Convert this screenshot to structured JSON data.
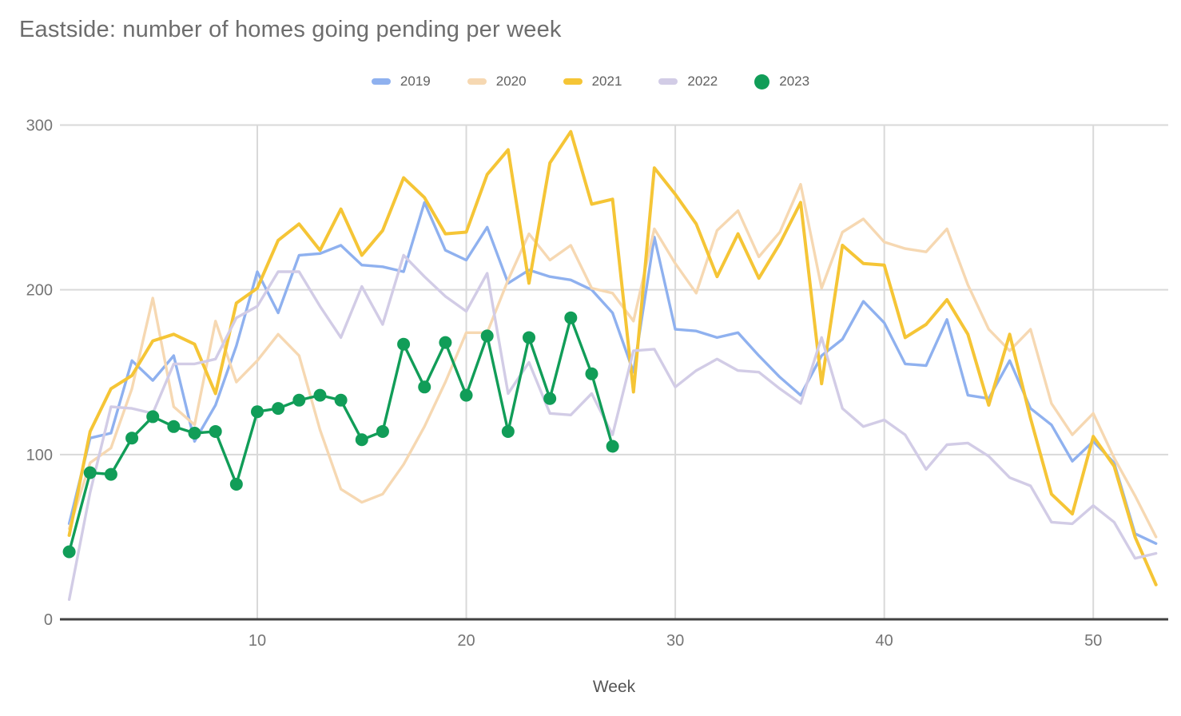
{
  "page": {
    "background": "#ffffff"
  },
  "chart_data": {
    "type": "line",
    "title": "Eastside: number of homes going pending per week",
    "xlabel": "Week",
    "ylabel": "",
    "x_start_week": 1,
    "x_ticks": [
      10,
      20,
      30,
      40,
      50
    ],
    "y_ticks": [
      0,
      100,
      200,
      300
    ],
    "xlim": [
      1,
      53
    ],
    "ylim": [
      0,
      300
    ],
    "grid": true,
    "legend_position": "top-center",
    "colors": {
      "grid": "#d9d9d9",
      "axis_line": "#424242",
      "tick_label": "#757575",
      "axis_title": "#555555",
      "title_text": "#6d6d6d",
      "legend_text": "#616161"
    },
    "series": [
      {
        "name": "2019",
        "color": "#8fb1ef",
        "marker": "none",
        "values": [
          58,
          110,
          113,
          157,
          145,
          160,
          108,
          130,
          166,
          211,
          186,
          221,
          222,
          227,
          215,
          214,
          211,
          253,
          224,
          218,
          238,
          204,
          212,
          208,
          206,
          200,
          186,
          150,
          232,
          176,
          175,
          171,
          174,
          160,
          147,
          136,
          160,
          170,
          193,
          180,
          155,
          154,
          182,
          136,
          134,
          157,
          128,
          118,
          96,
          108,
          95,
          52,
          46
        ]
      },
      {
        "name": "2020",
        "color": "#f6d8b2",
        "marker": "none",
        "values": [
          55,
          95,
          104,
          140,
          195,
          129,
          118,
          181,
          144,
          157,
          173,
          160,
          115,
          79,
          71,
          76,
          94,
          117,
          144,
          174,
          174,
          206,
          234,
          218,
          227,
          201,
          198,
          181,
          237,
          216,
          198,
          236,
          248,
          220,
          235,
          264,
          201,
          235,
          243,
          229,
          225,
          223,
          237,
          203,
          176,
          163,
          176,
          131,
          112,
          125,
          98,
          75,
          50
        ]
      },
      {
        "name": "2021",
        "color": "#f5c536",
        "marker": "none",
        "values": [
          51,
          114,
          140,
          148,
          169,
          173,
          167,
          137,
          192,
          201,
          230,
          240,
          224,
          249,
          221,
          236,
          268,
          256,
          234,
          235,
          270,
          285,
          204,
          277,
          296,
          252,
          255,
          138,
          274,
          258,
          240,
          208,
          234,
          207,
          228,
          253,
          143,
          227,
          216,
          215,
          171,
          179,
          194,
          173,
          130,
          173,
          122,
          76,
          64,
          111,
          93,
          50,
          21
        ]
      },
      {
        "name": "2022",
        "color": "#d2cce6",
        "marker": "none",
        "values": [
          12,
          77,
          129,
          128,
          125,
          155,
          155,
          158,
          183,
          190,
          211,
          211,
          190,
          171,
          202,
          179,
          221,
          208,
          196,
          187,
          210,
          137,
          156,
          125,
          124,
          137,
          112,
          163,
          164,
          141,
          151,
          158,
          151,
          150,
          140,
          131,
          171,
          128,
          117,
          121,
          112,
          91,
          106,
          107,
          99,
          86,
          81,
          59,
          58,
          69,
          59,
          37,
          40
        ]
      },
      {
        "name": "2023",
        "color": "#119d58",
        "marker": "circle",
        "values": [
          41,
          89,
          88,
          110,
          123,
          117,
          113,
          114,
          82,
          126,
          128,
          133,
          136,
          133,
          109,
          114,
          167,
          141,
          168,
          136,
          172,
          114,
          171,
          134,
          183,
          149,
          105
        ]
      }
    ]
  }
}
